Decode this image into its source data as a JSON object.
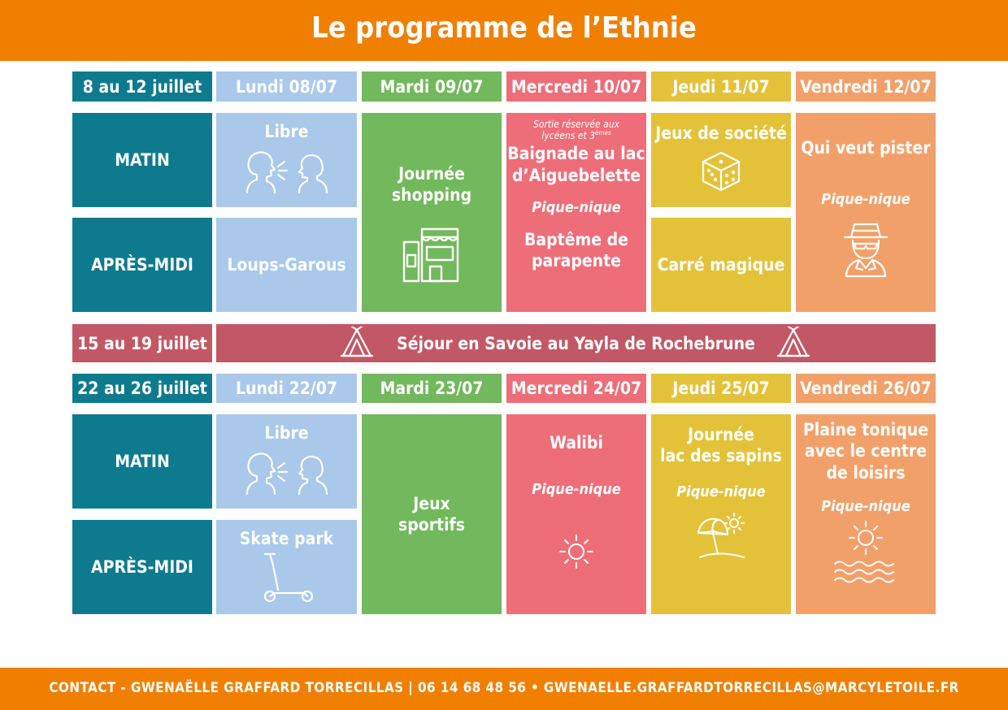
{
  "title": "Le programme de l’Ethnie",
  "contact": "CONTACT - GWENAËLLE GRAFFARD TORRECILLAS | 06 14 68 48 56 • GWENAELLE.GRAFFARDTORRECILLAS@MARCYLETOILE.FR",
  "colors": {
    "orange_bar": "#F07F00",
    "teal": "#0E7A8E",
    "blue": "#A9C8EA",
    "green": "#72B85C",
    "red": "#ED6E78",
    "yellow": "#E3C23A",
    "orange": "#F2A06A",
    "maroon": "#C25866"
  },
  "week1": {
    "label": "8 au 12 juillet",
    "days": [
      "Lundi 08/07",
      "Mardi 09/07",
      "Mercredi 10/07",
      "Jeudi 11/07",
      "Vendredi 12/07"
    ],
    "matin": "MATIN",
    "apres_midi": "APRÈS-MIDI",
    "lundi_am": "Libre",
    "lundi_pm": "Loups-Garous",
    "mardi": [
      "Journée",
      "shopping"
    ],
    "mercredi_note": "Sortie réservée aux lycéens et 3",
    "mercredi_note_sup": "èmes",
    "mercredi_am": [
      "Baignade au lac",
      "d’Aiguebelette"
    ],
    "mercredi_picnic": "Pique-nique",
    "mercredi_pm": [
      "Baptême de",
      "parapente"
    ],
    "jeudi_am": "Jeux de société",
    "jeudi_pm": "Carré magique",
    "vendredi": "Qui veut pister",
    "vendredi_picnic": "Pique-nique",
    "icons": [
      "talking-people-icon",
      "shop-icon",
      "dice-icon",
      "detective-icon"
    ]
  },
  "week2": {
    "label": "15 au 19 juillet",
    "sejour": "Séjour en Savoie au Yayla de Rochebrune",
    "icons": [
      "tent-icon"
    ]
  },
  "week3": {
    "label": "22 au 26 juillet",
    "days": [
      "Lundi 22/07",
      "Mardi 23/07",
      "Mercredi 24/07",
      "Jeudi 25/07",
      "Vendredi 26/07"
    ],
    "matin": "MATIN",
    "apres_midi": "APRÈS-MIDI",
    "lundi_am": "Libre",
    "lundi_pm": "Skate park",
    "mardi": [
      "Jeux",
      "sportifs"
    ],
    "mercredi": "Walibi",
    "mercredi_picnic": "Pique-nique",
    "jeudi": [
      "Journée",
      "lac des sapins"
    ],
    "jeudi_picnic": "Pique-nique",
    "vendredi": [
      "Plaine tonique",
      "avec le centre",
      "de loisirs"
    ],
    "vendredi_picnic": "Pique-nique",
    "icons": [
      "talking-people-icon",
      "scooter-icon",
      "sun-icon",
      "beach-umbrella-icon",
      "waves-icon"
    ]
  }
}
